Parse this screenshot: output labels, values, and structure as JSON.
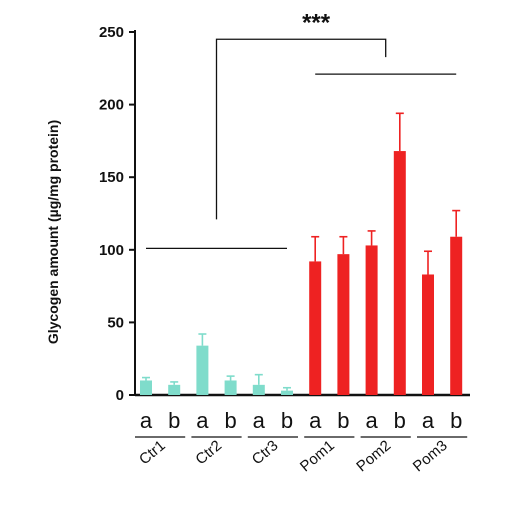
{
  "chart_data": {
    "type": "bar",
    "ylabel": "Glycogen amount (µg/mg protein)",
    "xlabel": "",
    "ylim": [
      0,
      250
    ],
    "yticks": [
      0,
      50,
      100,
      150,
      200,
      250
    ],
    "grid": false,
    "groups": [
      "Ctr1",
      "Ctr2",
      "Ctr3",
      "Pom1",
      "Pom2",
      "Pom3"
    ],
    "sublabels": [
      "a",
      "b"
    ],
    "bars": [
      {
        "group": "Ctr1",
        "sub": "a",
        "value": 10,
        "error": 2,
        "color": "#7fdccb"
      },
      {
        "group": "Ctr1",
        "sub": "b",
        "value": 7,
        "error": 2,
        "color": "#7fdccb"
      },
      {
        "group": "Ctr2",
        "sub": "a",
        "value": 34,
        "error": 8,
        "color": "#7fdccb"
      },
      {
        "group": "Ctr2",
        "sub": "b",
        "value": 10,
        "error": 3,
        "color": "#7fdccb"
      },
      {
        "group": "Ctr3",
        "sub": "a",
        "value": 7,
        "error": 7,
        "color": "#7fdccb"
      },
      {
        "group": "Ctr3",
        "sub": "b",
        "value": 3,
        "error": 2,
        "color": "#7fdccb"
      },
      {
        "group": "Pom1",
        "sub": "a",
        "value": 92,
        "error": 17,
        "color": "#ee2222"
      },
      {
        "group": "Pom1",
        "sub": "b",
        "value": 97,
        "error": 12,
        "color": "#ee2222"
      },
      {
        "group": "Pom2",
        "sub": "a",
        "value": 103,
        "error": 10,
        "color": "#ee2222"
      },
      {
        "group": "Pom2",
        "sub": "b",
        "value": 168,
        "error": 26,
        "color": "#ee2222"
      },
      {
        "group": "Pom3",
        "sub": "a",
        "value": 83,
        "error": 16,
        "color": "#ee2222"
      },
      {
        "group": "Pom3",
        "sub": "b",
        "value": 109,
        "error": 18,
        "color": "#ee2222"
      }
    ],
    "annotations": {
      "significance": "***",
      "control_line_value": 101,
      "pompe_line_value": 221,
      "bracket_top_value": 245
    }
  }
}
